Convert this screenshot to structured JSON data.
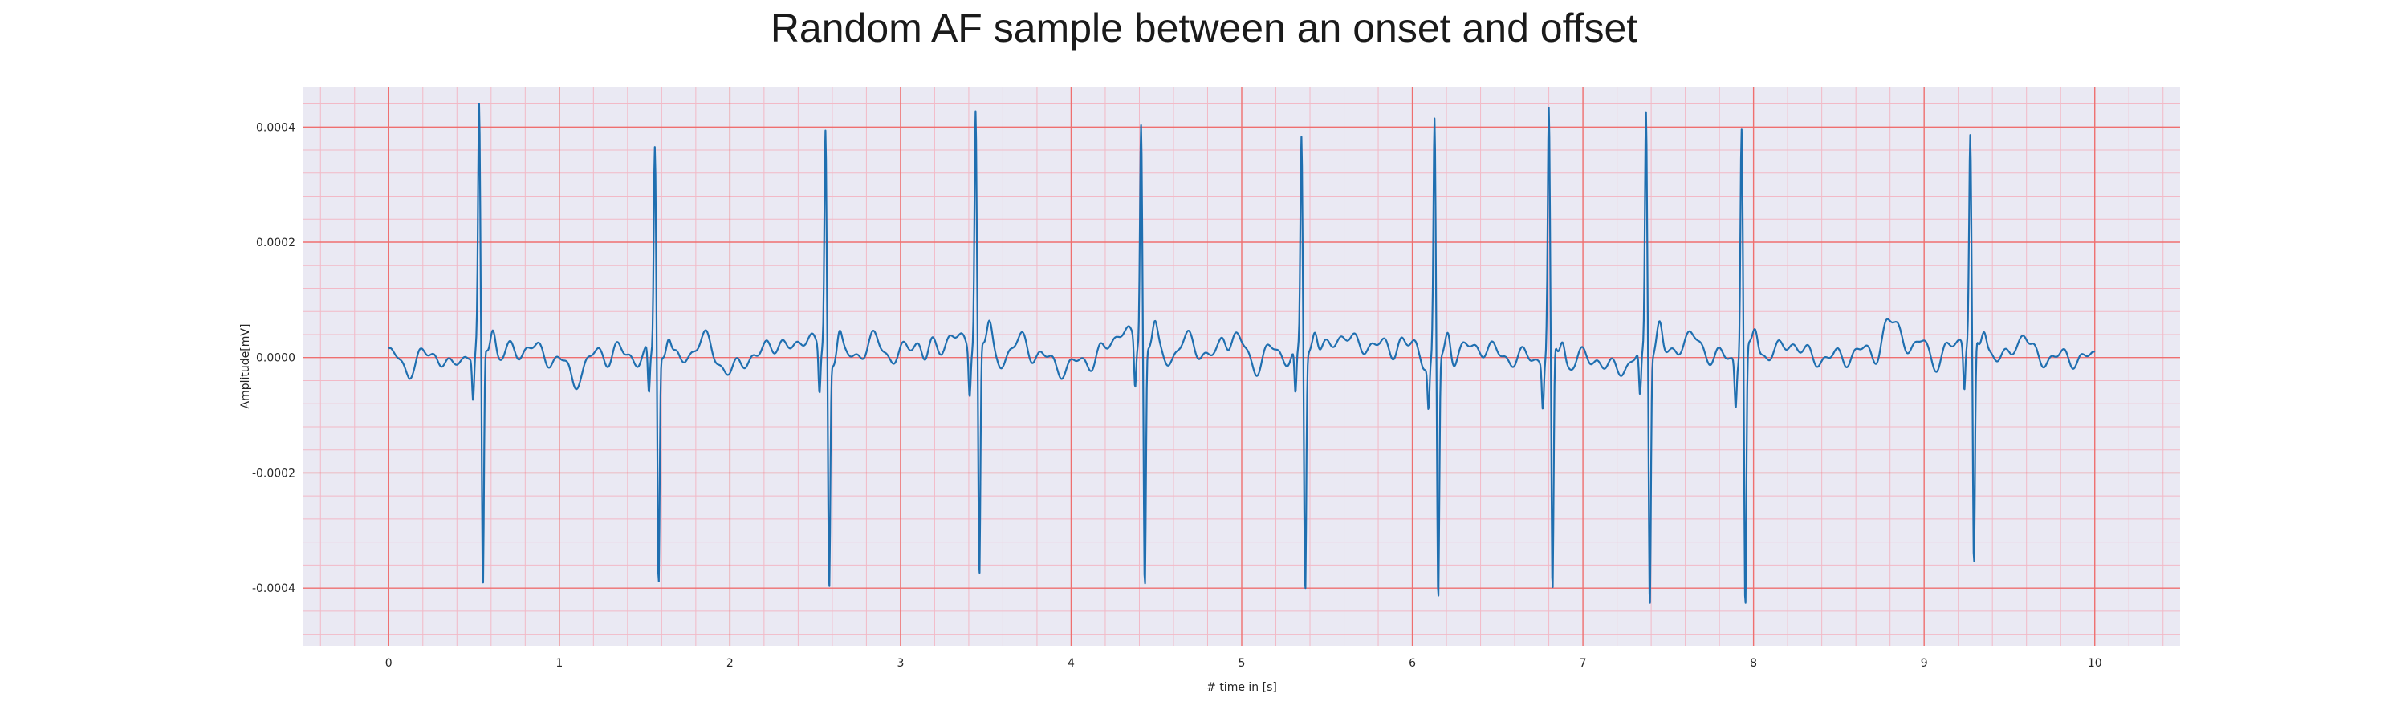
{
  "chart_data": {
    "type": "line",
    "title": "Random AF sample between an onset and offset",
    "xlabel": "# time in [s]",
    "ylabel": "Amplitude[mV]",
    "xlim": [
      -0.5,
      10.5
    ],
    "ylim": [
      -0.0005,
      0.00047
    ],
    "x_ticks": [
      0,
      1,
      2,
      3,
      4,
      5,
      6,
      7,
      8,
      9,
      10
    ],
    "x_tick_labels": [
      "0",
      "1",
      "2",
      "3",
      "4",
      "5",
      "6",
      "7",
      "8",
      "9",
      "10"
    ],
    "y_ticks": [
      0.0004,
      0.0002,
      0.0,
      -0.0002,
      -0.0004
    ],
    "y_tick_labels": [
      "0.0004",
      "0.0002",
      "0.0000",
      "-0.0002",
      "-0.0004"
    ],
    "grid": true,
    "minor_grid": true,
    "baseline_mV": 0.0,
    "beats": [
      {
        "r_time_s": 0.53,
        "r_peak_mV": 0.000405,
        "s_trough_mV": -0.00043
      },
      {
        "r_time_s": 1.56,
        "r_peak_mV": 0.000365,
        "s_trough_mV": -0.0004
      },
      {
        "r_time_s": 2.56,
        "r_peak_mV": 0.000383,
        "s_trough_mV": -0.000405
      },
      {
        "r_time_s": 3.44,
        "r_peak_mV": 0.000405,
        "s_trough_mV": -0.000415
      },
      {
        "r_time_s": 4.41,
        "r_peak_mV": 0.000388,
        "s_trough_mV": -0.00042
      },
      {
        "r_time_s": 5.35,
        "r_peak_mV": 0.000378,
        "s_trough_mV": -0.000413
      },
      {
        "r_time_s": 6.13,
        "r_peak_mV": 0.000415,
        "s_trough_mV": -0.000422
      },
      {
        "r_time_s": 6.8,
        "r_peak_mV": 0.000415,
        "s_trough_mV": -0.00044
      },
      {
        "r_time_s": 7.37,
        "r_peak_mV": 0.000423,
        "s_trough_mV": -0.00043
      },
      {
        "r_time_s": 7.93,
        "r_peak_mV": 0.000405,
        "s_trough_mV": -0.000452
      },
      {
        "r_time_s": 9.27,
        "r_peak_mV": 0.000358,
        "s_trough_mV": -0.0004
      }
    ],
    "series": [
      {
        "color": "#1f6fb0",
        "x_range_s": [
          0,
          10
        ],
        "sample_rate_hz": 300
      }
    ],
    "colors": {
      "plot_background": "#eae9f3",
      "major_grid": "#ef6f6f",
      "minor_grid": "#f2b9c6",
      "line": "#1f6fb0"
    }
  }
}
